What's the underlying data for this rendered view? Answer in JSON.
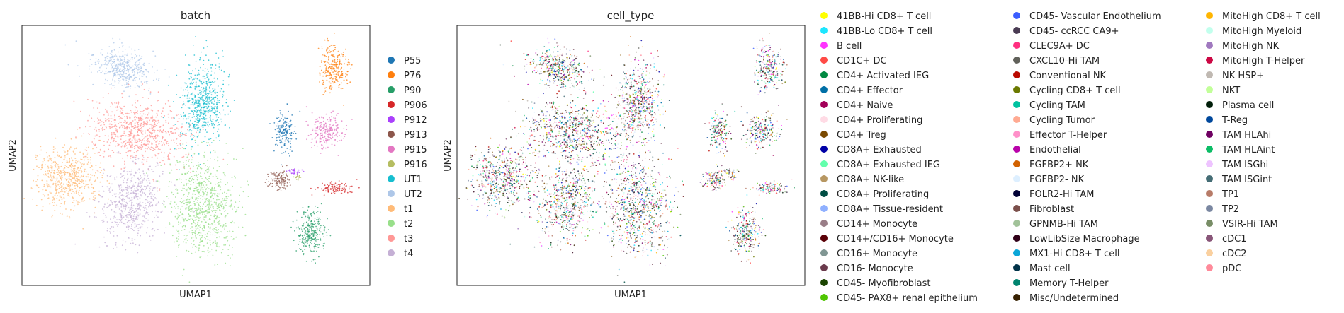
{
  "chart_data": [
    {
      "type": "scatter",
      "title": "batch",
      "xlabel": "UMAP1",
      "ylabel": "UMAP2",
      "legend_position": "right",
      "series": [
        {
          "name": "P55",
          "color": "#1f77b4"
        },
        {
          "name": "P76",
          "color": "#ff7f0e"
        },
        {
          "name": "P90",
          "color": "#279e68"
        },
        {
          "name": "P906",
          "color": "#d62728"
        },
        {
          "name": "P912",
          "color": "#aa40fc"
        },
        {
          "name": "P913",
          "color": "#8c564b"
        },
        {
          "name": "P915",
          "color": "#e377c2"
        },
        {
          "name": "P916",
          "color": "#b5bd61"
        },
        {
          "name": "UT1",
          "color": "#17becf"
        },
        {
          "name": "UT2",
          "color": "#aec7e8"
        },
        {
          "name": "t1",
          "color": "#ffbb78"
        },
        {
          "name": "t2",
          "color": "#98df8a"
        },
        {
          "name": "t3",
          "color": "#ff9896"
        },
        {
          "name": "t4",
          "color": "#c5b0d5"
        }
      ]
    },
    {
      "type": "scatter",
      "title": "cell_type",
      "xlabel": "UMAP1",
      "ylabel": "UMAP2",
      "legend_position": "right",
      "series": [
        {
          "name": "41BB-Hi CD8+ T cell",
          "color": "#ffff00"
        },
        {
          "name": "41BB-Lo CD8+ T cell",
          "color": "#1ce6ff"
        },
        {
          "name": "B cell",
          "color": "#ff34ff"
        },
        {
          "name": "CD1C+ DC",
          "color": "#ff4a46"
        },
        {
          "name": "CD4+ Activated IEG",
          "color": "#008941"
        },
        {
          "name": "CD4+ Effector",
          "color": "#006fa6"
        },
        {
          "name": "CD4+ Naive",
          "color": "#a30059"
        },
        {
          "name": "CD4+ Proliferating",
          "color": "#ffdbe5"
        },
        {
          "name": "CD4+ Treg",
          "color": "#7a4900"
        },
        {
          "name": "CD8A+ Exhausted",
          "color": "#0000a6"
        },
        {
          "name": "CD8A+ Exhausted IEG",
          "color": "#63ffac"
        },
        {
          "name": "CD8A+ NK-like",
          "color": "#b79762"
        },
        {
          "name": "CD8A+ Proliferating",
          "color": "#004d43"
        },
        {
          "name": "CD8A+ Tissue-resident",
          "color": "#8fb0ff"
        },
        {
          "name": "CD14+ Monocyte",
          "color": "#997d87"
        },
        {
          "name": "CD14+/CD16+ Monocyte",
          "color": "#5a0007"
        },
        {
          "name": "CD16+ Monocyte",
          "color": "#809693"
        },
        {
          "name": "CD16- Monocyte",
          "color": "#6a3a4c"
        },
        {
          "name": "CD45- Myofibroblast",
          "color": "#1b4400"
        },
        {
          "name": "CD45- PAX8+ renal epithelium",
          "color": "#4fc601"
        },
        {
          "name": "CD45- Vascular Endothelium",
          "color": "#3b5dff"
        },
        {
          "name": "CD45- ccRCC CA9+",
          "color": "#4a3b53"
        },
        {
          "name": "CLEC9A+ DC",
          "color": "#ff2f80"
        },
        {
          "name": "CXCL10-Hi TAM",
          "color": "#61615a"
        },
        {
          "name": "Conventional NK",
          "color": "#ba0900"
        },
        {
          "name": "Cycling CD8+ T cell",
          "color": "#6b7900"
        },
        {
          "name": "Cycling TAM",
          "color": "#00c2a0"
        },
        {
          "name": "Cycling Tumor",
          "color": "#ffaa92"
        },
        {
          "name": "Effector T-Helper",
          "color": "#ff90c9"
        },
        {
          "name": "Endothelial",
          "color": "#b903aa"
        },
        {
          "name": "FGFBP2+ NK",
          "color": "#d16100"
        },
        {
          "name": "FGFBP2- NK",
          "color": "#ddefff"
        },
        {
          "name": "FOLR2-Hi TAM",
          "color": "#000035"
        },
        {
          "name": "Fibroblast",
          "color": "#7b4f4b"
        },
        {
          "name": "GPNMB-Hi TAM",
          "color": "#a1c299"
        },
        {
          "name": "LowLibSize Macrophage",
          "color": "#300018"
        },
        {
          "name": "MX1-Hi CD8+ T cell",
          "color": "#0aa6d8"
        },
        {
          "name": "Mast cell",
          "color": "#013349"
        },
        {
          "name": "Memory T-Helper",
          "color": "#00846f"
        },
        {
          "name": "Misc/Undetermined",
          "color": "#372101"
        },
        {
          "name": "MitoHigh CD8+ T cell",
          "color": "#ffb500"
        },
        {
          "name": "MitoHigh Myeloid",
          "color": "#c2ffed"
        },
        {
          "name": "MitoHigh NK",
          "color": "#a079bf"
        },
        {
          "name": "MitoHigh T-Helper",
          "color": "#cc0744"
        },
        {
          "name": "NK HSP+",
          "color": "#c0b9b2"
        },
        {
          "name": "NKT",
          "color": "#c2ff99"
        },
        {
          "name": "Plasma cell",
          "color": "#001e09"
        },
        {
          "name": "T-Reg",
          "color": "#00489c"
        },
        {
          "name": "TAM HLAhi",
          "color": "#6f0062"
        },
        {
          "name": "TAM HLAint",
          "color": "#0cbd66"
        },
        {
          "name": "TAM ISGhi",
          "color": "#eec3ff"
        },
        {
          "name": "TAM ISGint",
          "color": "#456d75"
        },
        {
          "name": "TP1",
          "color": "#b77b68"
        },
        {
          "name": "TP2",
          "color": "#7a87a1"
        },
        {
          "name": "VSIR-Hi TAM",
          "color": "#788d66"
        },
        {
          "name": "cDC1",
          "color": "#885578"
        },
        {
          "name": "cDC2",
          "color": "#fad09f"
        },
        {
          "name": "pDC",
          "color": "#ff8a9a"
        }
      ]
    }
  ]
}
